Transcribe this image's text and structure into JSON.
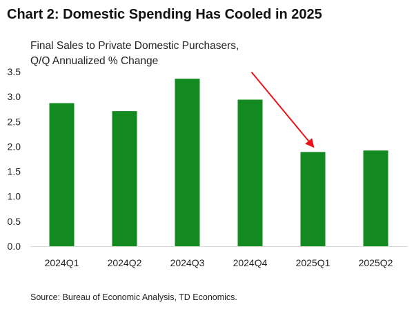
{
  "chart_data": {
    "type": "bar",
    "title": "Chart 2: Domestic Spending Has Cooled in 2025",
    "subtitle_lines": [
      "Final Sales to Private Domestic Purchasers,",
      "Q/Q Annualized % Change"
    ],
    "categories": [
      "2024Q1",
      "2024Q2",
      "2024Q3",
      "2024Q4",
      "2025Q1",
      "2025Q2"
    ],
    "values": [
      2.87,
      2.71,
      3.36,
      2.94,
      1.89,
      1.92
    ],
    "ylim": [
      0,
      3.5
    ],
    "yticks": [
      "0.0",
      "0.5",
      "1.0",
      "1.5",
      "2.0",
      "2.5",
      "3.0",
      "3.5"
    ],
    "xlabel": "",
    "ylabel": "",
    "grid": false,
    "bar_color": "#138A1F",
    "annotation": {
      "type": "arrow",
      "from_category": "2024Q4",
      "to_category": "2025Q1",
      "color": "#E8141A"
    },
    "source": "Source: Bureau of Economic Analysis, TD Economics."
  }
}
